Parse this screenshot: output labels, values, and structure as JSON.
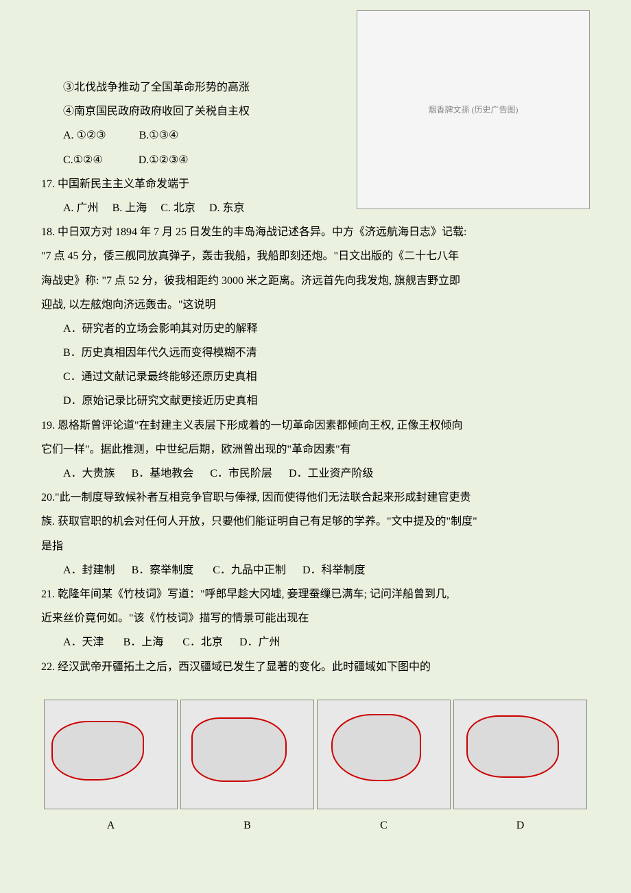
{
  "top_image_placeholder": "烟香牌文孫 (历史广告图)",
  "q16": {
    "stmt3": "③北伐战争推动了全国革命形势的高涨",
    "stmt4": "④南京国民政府政府收回了关税自主权",
    "optA": "A. ①②③",
    "optB": "B.①③④",
    "optC": "C.①②④",
    "optD": "D.①②③④"
  },
  "q17": {
    "stem": "17. 中国新民主主义革命发端于",
    "optA": "A. 广州",
    "optB": "B. 上海",
    "optC": "C. 北京",
    "optD": "D. 东京"
  },
  "q18": {
    "stem_line1": "18.  中日双方对 1894 年 7 月 25 日发生的丰岛海战记述各异。中方《济远航海日志》记载:",
    "stem_line2": "\"7 点 45 分，倭三舰同放真弹子，轰击我船，我船即刻还炮。\"日文出版的《二十七八年",
    "stem_line3": "海战史》称:  \"7 点 52 分，彼我相距约 3000 米之距离。济远首先向我发炮, 旗舰吉野立即",
    "stem_line4": "迎战, 以左舷炮向济远轰击。\"这说明",
    "optA": "A．研究者的立场会影响其对历史的解释",
    "optB": "B．历史真相因年代久远而变得模糊不清",
    "optC": "C．通过文献记录最终能够还原历史真相",
    "optD": "D．原始记录比研究文献更接近历史真相"
  },
  "q19": {
    "stem_line1": "19. 恩格斯曾评论道\"在封建主义表层下形成着的一切革命因素都倾向王权, 正像王权倾向",
    "stem_line2": "它们一样\"。据此推测，中世纪后期，欧洲曾出现的\"革命因素\"有",
    "optA": "A．大贵族",
    "optB": "B．基地教会",
    "optC": "C．市民阶层",
    "optD": "D．工业资产阶级"
  },
  "q20": {
    "stem_line1": "20.\"此一制度导致候补者互相竞争官职与俸禄, 因而使得他们无法联合起来形成封建官吏贵",
    "stem_line2": "族. 获取官职的机会对任何人开放，只要他们能证明自己有足够的学养。\"文中提及的\"制度\"",
    "stem_line3": "是指",
    "optA": "A．封建制",
    "optB": "B．察举制度",
    "optC": "C．九品中正制",
    "optD": "D．科举制度"
  },
  "q21": {
    "stem_line1": "21. 乾隆年间某《竹枝词》写道：\"呼郎早趁大冈墟, 妾理蚕缫已满车; 记问洋船曾到几,",
    "stem_line2": "近来丝价竟何如。\"该《竹枝词》描写的情景可能出现在",
    "optA": "A．天津",
    "optB": "B．上海",
    "optC": "C．北京",
    "optD": "D．广州"
  },
  "q22": {
    "stem": "22. 经汉武帝开疆拓土之后，西汉疆域已发生了显著的变化。此时疆域如下图中的",
    "labelA": "A",
    "labelB": "B",
    "labelC": "C",
    "labelD": "D"
  },
  "colors": {
    "background": "#ebf1df",
    "text": "#000000",
    "map_border": "#cc0000"
  }
}
